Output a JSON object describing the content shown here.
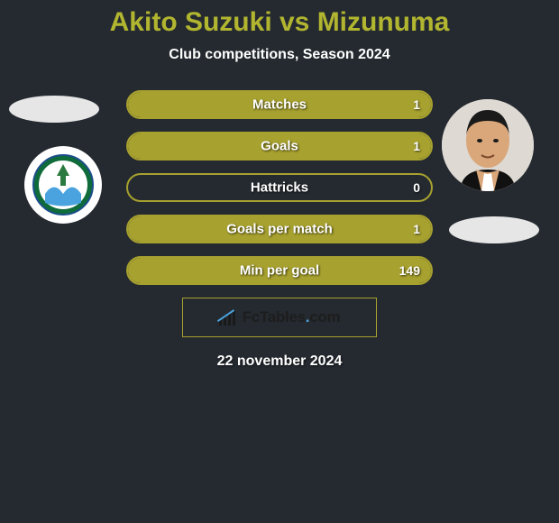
{
  "title": {
    "text": "Akito Suzuki vs Mizunuma",
    "color": "#b1b52f",
    "fontsize": 30
  },
  "subtitle": {
    "text": "Club competitions, Season 2024",
    "color": "#ffffff",
    "fontsize": 16
  },
  "accent_color": "#a7a12f",
  "background_color": "#252a30",
  "comparison": {
    "rows": [
      {
        "label": "Matches",
        "left": null,
        "right": "1",
        "left_pct": 0,
        "right_pct": 100
      },
      {
        "label": "Goals",
        "left": null,
        "right": "1",
        "left_pct": 0,
        "right_pct": 100
      },
      {
        "label": "Hattricks",
        "left": null,
        "right": "0",
        "left_pct": 0,
        "right_pct": 0
      },
      {
        "label": "Goals per match",
        "left": null,
        "right": "1",
        "left_pct": 0,
        "right_pct": 100
      },
      {
        "label": "Min per goal",
        "left": null,
        "right": "149",
        "left_pct": 0,
        "right_pct": 100
      }
    ]
  },
  "brand": "FcTables.com",
  "date": "22 november 2024",
  "badges": {
    "left_team_crest": "shonan-crest",
    "right_player": "mizunuma-photo"
  }
}
